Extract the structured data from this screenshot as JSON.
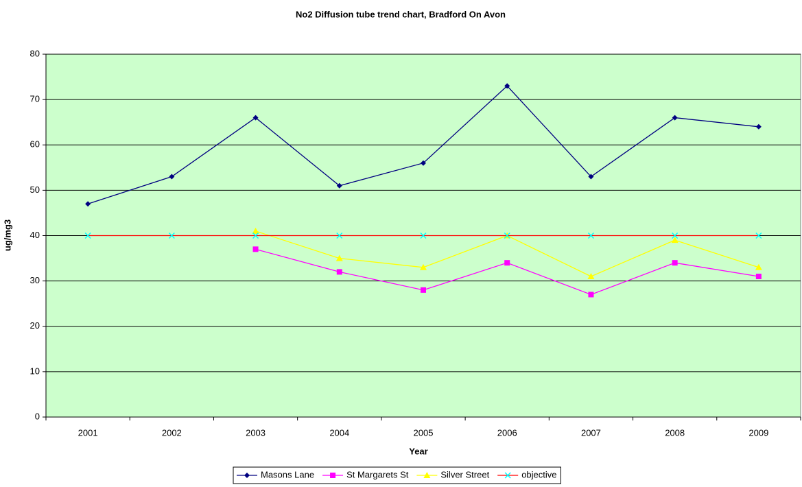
{
  "chart_data": {
    "type": "line",
    "title": "No2 Diffusion tube trend chart, Bradford On Avon",
    "xlabel": "Year",
    "ylabel": "ug/mg3",
    "categories": [
      "2001",
      "2002",
      "2003",
      "2004",
      "2005",
      "2006",
      "2007",
      "2008",
      "2009"
    ],
    "series": [
      {
        "name": "Masons Lane",
        "color": "#000080",
        "marker": "diamond",
        "values": [
          47,
          53,
          66,
          51,
          56,
          73,
          53,
          66,
          64
        ]
      },
      {
        "name": "St Margarets St",
        "color": "#ff00ff",
        "marker": "square",
        "values": [
          null,
          null,
          37,
          32,
          28,
          34,
          27,
          34,
          31
        ]
      },
      {
        "name": "Silver Street",
        "color": "#ffff00",
        "marker": "triangle",
        "values": [
          null,
          null,
          41,
          35,
          33,
          40,
          31,
          39,
          33
        ]
      },
      {
        "name": "objective",
        "color": "#ff0000",
        "marker": "x",
        "marker_color": "#00ffff",
        "values": [
          40,
          40,
          40,
          40,
          40,
          40,
          40,
          40,
          40
        ]
      }
    ],
    "ylim": [
      0,
      80
    ],
    "yticks": [
      0,
      10,
      20,
      30,
      40,
      50,
      60,
      70,
      80
    ],
    "grid": true,
    "plot_background": "#ccffcc",
    "legend": "bottom"
  }
}
